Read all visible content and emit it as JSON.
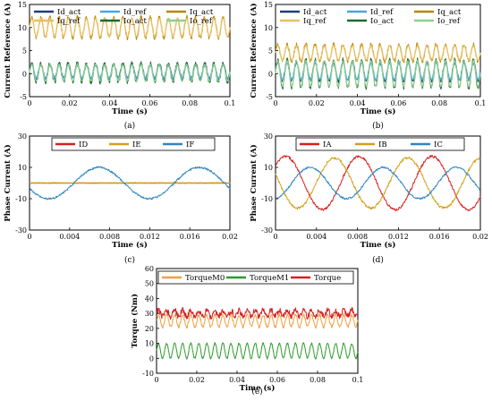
{
  "chart_data": [
    {
      "panel": "(a)",
      "type": "line",
      "xlabel": "Time (s)",
      "ylabel": "Current Reference (A)",
      "xlim": [
        0,
        0.1
      ],
      "ylim": [
        -5,
        15
      ],
      "xticks": [
        "0",
        "0.02",
        "0.04",
        "0.06",
        "0.08",
        "0.1"
      ],
      "xtick_values": [
        0,
        0.02,
        0.04,
        0.06,
        0.08,
        0.1
      ],
      "yticks": [
        "-5",
        "0",
        "5",
        "10",
        "15"
      ],
      "ytick_values": [
        -5,
        0,
        5,
        10,
        15
      ],
      "legend_placement": "top",
      "series": [
        {
          "name": "Id_act",
          "color": "#1f3f7a",
          "mean": 0.5,
          "amplitude": 1.6,
          "frequency_hz": 220,
          "noise": 0.5
        },
        {
          "name": "Id_ref",
          "color": "#4aa8e0",
          "mean": 0.5,
          "amplitude": 1.4,
          "frequency_hz": 220,
          "noise": 0.1
        },
        {
          "name": "Iq_act",
          "color": "#b8860b",
          "mean": 10,
          "amplitude": 2.2,
          "frequency_hz": 220,
          "noise": 0.5
        },
        {
          "name": "Iq_ref",
          "color": "#e8c060",
          "mean": 10,
          "amplitude": 2.0,
          "frequency_hz": 220,
          "noise": 0.1
        },
        {
          "name": "Io_act",
          "color": "#1d6b30",
          "mean": 0.2,
          "amplitude": 2.0,
          "frequency_hz": 220,
          "noise": 0.5
        },
        {
          "name": "Io_ref",
          "color": "#8fd08f",
          "mean": 0.2,
          "amplitude": 1.8,
          "frequency_hz": 220,
          "noise": 0.1
        }
      ]
    },
    {
      "panel": "(b)",
      "type": "line",
      "xlabel": "Time (s)",
      "ylabel": "Current Reference (A)",
      "xlim": [
        0,
        0.1
      ],
      "ylim": [
        -5,
        15
      ],
      "xticks": [
        "0",
        "0.02",
        "0.04",
        "0.06",
        "0.08",
        "0.1"
      ],
      "xtick_values": [
        0,
        0.02,
        0.04,
        0.06,
        0.08,
        0.1
      ],
      "yticks": [
        "-5",
        "0",
        "5",
        "10",
        "15"
      ],
      "ytick_values": [
        -5,
        0,
        5,
        10,
        15
      ],
      "legend_placement": "top",
      "series": [
        {
          "name": "Id_act",
          "color": "#1f3f7a",
          "mean": 0.5,
          "amplitude": 2.0,
          "frequency_hz": 220,
          "noise": 0.5
        },
        {
          "name": "Id_ref",
          "color": "#4aa8e0",
          "mean": 0.5,
          "amplitude": 1.8,
          "frequency_hz": 220,
          "noise": 0.1
        },
        {
          "name": "Iq_act",
          "color": "#b8860b",
          "mean": 4.5,
          "amplitude": 1.8,
          "frequency_hz": 220,
          "noise": 0.5
        },
        {
          "name": "Iq_ref",
          "color": "#e8c060",
          "mean": 4.5,
          "amplitude": 1.6,
          "frequency_hz": 220,
          "noise": 0.1
        },
        {
          "name": "Io_act",
          "color": "#1d6b30",
          "mean": 0.0,
          "amplitude": 3.0,
          "frequency_hz": 220,
          "noise": 0.5
        },
        {
          "name": "Io_ref",
          "color": "#8fd08f",
          "mean": 0.0,
          "amplitude": 2.8,
          "frequency_hz": 220,
          "noise": 0.1
        }
      ]
    },
    {
      "panel": "(c)",
      "type": "line",
      "xlabel": "Time (s)",
      "ylabel": "Phase Current (A)",
      "xlim": [
        0,
        0.02
      ],
      "ylim": [
        -30,
        30
      ],
      "xticks": [
        "0",
        "0.004",
        "0.008",
        "0.012",
        "0.016",
        "0.02"
      ],
      "xtick_values": [
        0,
        0.004,
        0.008,
        0.012,
        0.016,
        0.02
      ],
      "yticks": [
        "-30",
        "-10",
        "10",
        "30"
      ],
      "ytick_values": [
        -30,
        -10,
        10,
        30
      ],
      "legend_placement": "top",
      "series": [
        {
          "name": "ID",
          "color": "#d62020",
          "mean": 0,
          "amplitude": 0,
          "frequency_hz": 100,
          "phase_deg": 0,
          "noise": 0
        },
        {
          "name": "IE",
          "color": "#d4a017",
          "mean": 0,
          "amplitude": 0,
          "frequency_hz": 100,
          "phase_deg": 0,
          "noise": 0.3
        },
        {
          "name": "IF",
          "color": "#2e86c1",
          "mean": 0,
          "amplitude": 10,
          "frequency_hz": 100,
          "phase_deg": 200,
          "noise": 0.6
        }
      ]
    },
    {
      "panel": "(d)",
      "type": "line",
      "xlabel": "Time (s)",
      "ylabel": "Phase Current (A)",
      "xlim": [
        0,
        0.02
      ],
      "ylim": [
        -30,
        30
      ],
      "xticks": [
        "0",
        "0.004",
        "0.008",
        "0.012",
        "0.016",
        "0.02"
      ],
      "xtick_values": [
        0,
        0.004,
        0.008,
        0.012,
        0.016,
        0.02
      ],
      "yticks": [
        "-30",
        "-10",
        "10",
        "30"
      ],
      "ytick_values": [
        -30,
        -10,
        10,
        30
      ],
      "legend_placement": "top",
      "series": [
        {
          "name": "IA",
          "color": "#d62020",
          "mean": 0,
          "amplitude": 17,
          "frequency_hz": 140,
          "phase_deg": 40,
          "noise": 0.8
        },
        {
          "name": "IB",
          "color": "#d4a017",
          "mean": 0,
          "amplitude": 16,
          "frequency_hz": 140,
          "phase_deg": 160,
          "noise": 0.8
        },
        {
          "name": "IC",
          "color": "#2e86c1",
          "mean": 0,
          "amplitude": 10,
          "frequency_hz": 140,
          "phase_deg": 280,
          "noise": 0.6
        }
      ]
    },
    {
      "panel": "(e)",
      "type": "line",
      "xlabel": "Time (s)",
      "ylabel": "Torque (Nm)",
      "xlim": [
        0,
        0.1
      ],
      "ylim": [
        -10,
        60
      ],
      "xticks": [
        "0",
        "0.02",
        "0.04",
        "0.06",
        "0.08",
        "0.1"
      ],
      "xtick_values": [
        0,
        0.02,
        0.04,
        0.06,
        0.08,
        0.1
      ],
      "yticks": [
        "-10",
        "0",
        "10",
        "20",
        "30",
        "40",
        "50",
        "60"
      ],
      "ytick_values": [
        -10,
        0,
        10,
        20,
        30,
        40,
        50,
        60
      ],
      "legend_placement": "top",
      "series": [
        {
          "name": "TorqueM0",
          "color": "#f0a040",
          "mean": 25,
          "amplitude": 4,
          "frequency_hz": 250,
          "noise": 1.0
        },
        {
          "name": "TorqueM1",
          "color": "#2e9a2e",
          "mean": 5,
          "amplitude": 5,
          "frequency_hz": 250,
          "noise": 0.6
        },
        {
          "name": "Torque",
          "color": "#d62020",
          "mean": 30,
          "amplitude": 2,
          "frequency_hz": 250,
          "noise": 2.0
        }
      ]
    }
  ]
}
